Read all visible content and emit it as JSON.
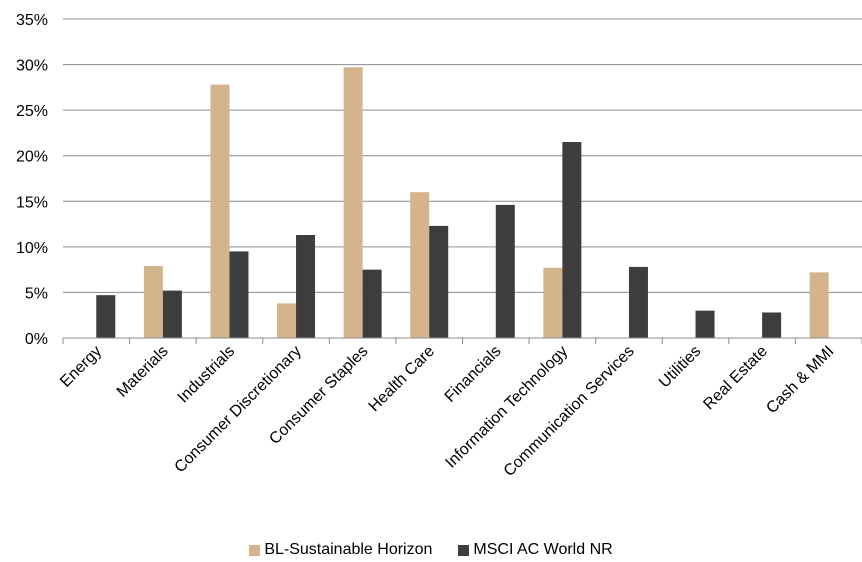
{
  "chart_data": {
    "type": "bar",
    "categories": [
      "Energy",
      "Materials",
      "Industrials",
      "Consumer Discretionary",
      "Consumer Staples",
      "Health Care",
      "Financials",
      "Information Technology",
      "Communication Services",
      "Utilities",
      "Real Estate",
      "Cash & MMI"
    ],
    "series": [
      {
        "name": "BL-Sustainable Horizon",
        "color": "#D4B48C",
        "values": [
          0,
          7.9,
          27.8,
          3.8,
          29.7,
          16.0,
          0,
          7.7,
          0,
          0,
          0,
          7.2
        ]
      },
      {
        "name": "MSCI AC World NR",
        "color": "#3D3D3D",
        "values": [
          4.7,
          5.2,
          9.5,
          11.3,
          7.5,
          12.3,
          14.6,
          21.5,
          7.8,
          3.0,
          2.8,
          0
        ]
      }
    ],
    "yticks": [
      "0%",
      "5%",
      "10%",
      "15%",
      "20%",
      "25%",
      "30%",
      "35%"
    ],
    "ylim": [
      0,
      35
    ],
    "grid": true,
    "legend_position": "bottom"
  }
}
